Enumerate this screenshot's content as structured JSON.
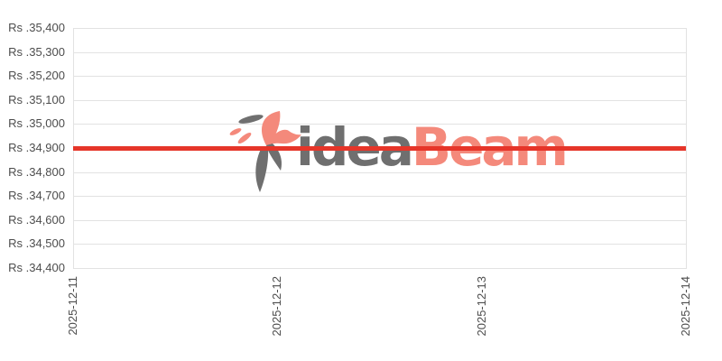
{
  "chart": {
    "watermark": {
      "text_gray": "idea",
      "text_accent": "Beam"
    },
    "colors": {
      "line": "#e63529",
      "grid": "#e2e2e2",
      "axis_text": "#4d4d4d",
      "background": "#ffffff",
      "watermark_gray": "#6f6f6f",
      "watermark_salmon": "#f4897b"
    }
  },
  "chart_data": {
    "type": "line",
    "title": "",
    "xlabel": "",
    "ylabel": "",
    "x": [
      "2025-12-11",
      "2025-12-12",
      "2025-12-13",
      "2025-12-14"
    ],
    "series": [
      {
        "name": "price",
        "values": [
          34900,
          34900,
          34900,
          34900
        ],
        "color": "#e63529",
        "style": "thick-solid-horizontal"
      }
    ],
    "ylim": [
      34400,
      35400
    ],
    "y_tick_step": 100,
    "y_tick_labels": [
      "Rs .35,400",
      "Rs .35,300",
      "Rs .35,200",
      "Rs .35,100",
      "Rs .35,000",
      "Rs .34,900",
      "Rs .34,800",
      "Rs .34,700",
      "Rs .34,600",
      "Rs .34,500",
      "Rs .34,400"
    ],
    "grid": "horizontal-only",
    "legend": "none",
    "x_label_rotation": -90,
    "currency_prefix": "Rs ."
  }
}
